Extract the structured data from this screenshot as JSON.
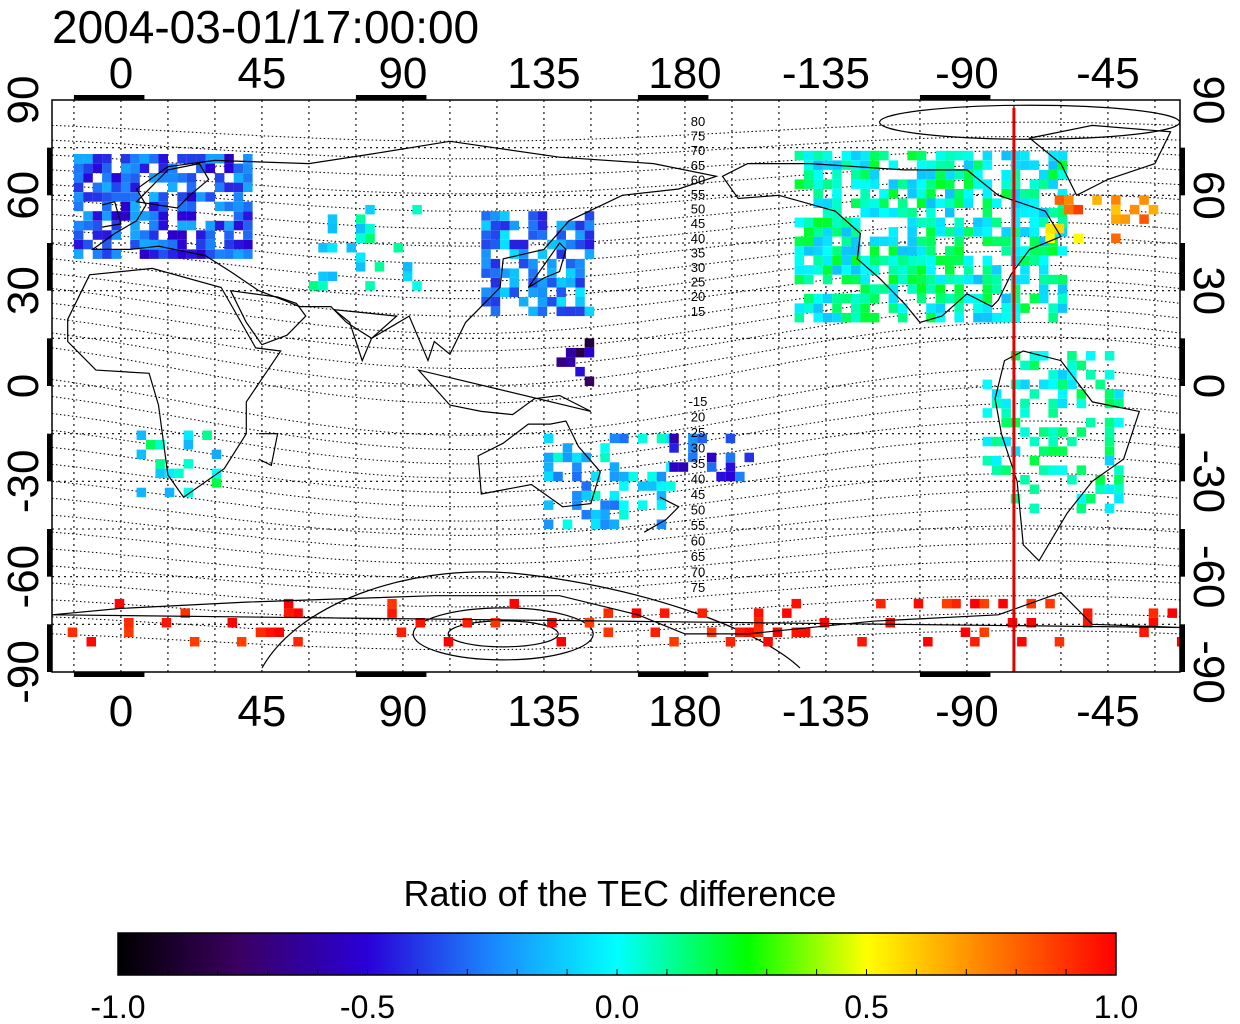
{
  "title": "2004-03-01/17:00:00",
  "map": {
    "lon_ticks": [
      {
        "label": "0",
        "lon": 0
      },
      {
        "label": "45",
        "lon": 45
      },
      {
        "label": "90",
        "lon": 90
      },
      {
        "label": "135",
        "lon": 135
      },
      {
        "label": "180",
        "lon": 180
      },
      {
        "label": "-135",
        "lon": 225
      },
      {
        "label": "-90",
        "lon": 270
      },
      {
        "label": "-45",
        "lon": 315
      }
    ],
    "lat_ticks": [
      {
        "label": "90",
        "lat": 90
      },
      {
        "label": "60",
        "lat": 60
      },
      {
        "label": "30",
        "lat": 30
      },
      {
        "label": "0",
        "lat": 0
      },
      {
        "label": "-30",
        "lat": -30
      },
      {
        "label": "-60",
        "lat": -60
      },
      {
        "label": "-90",
        "lat": -90
      }
    ],
    "lon_range": [
      -22,
      338
    ],
    "lat_range": [
      -90,
      90
    ],
    "grid": true,
    "red_meridian_lon": -75,
    "contour_labels_north": [
      "80",
      "75",
      "70",
      "65",
      "60",
      "55",
      "50",
      "45",
      "40",
      "35",
      "30",
      "25",
      "20",
      "15"
    ],
    "contour_labels_south": [
      "-15",
      "20",
      "25",
      "30",
      "35",
      "40",
      "45",
      "50",
      "55",
      "60",
      "65",
      "70",
      "75"
    ]
  },
  "colorbar": {
    "title": "Ratio of the TEC difference",
    "ticks": [
      "-1.0",
      "-0.5",
      "0.0",
      "0.5",
      "1.0"
    ],
    "min": -1.0,
    "max": 1.0
  },
  "colors": {
    "red_line": "#e00000",
    "background": "#ffffff"
  }
}
